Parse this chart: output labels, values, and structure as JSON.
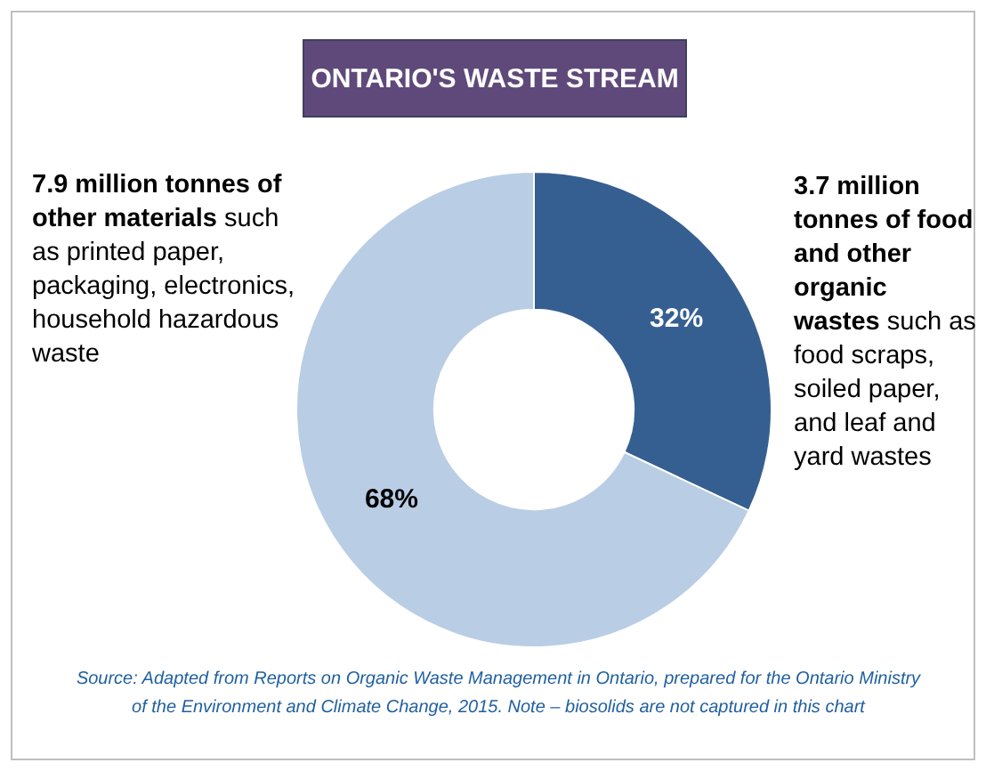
{
  "chart_data": {
    "type": "donut",
    "title": "ONTARIO'S WASTE STREAM",
    "categories": [
      null,
      null
    ],
    "values": [
      32,
      68
    ],
    "colors": [
      "#365f91",
      "#b9cde5"
    ],
    "value_labels": [
      "32%",
      "68%"
    ],
    "legend": false,
    "annotations": [
      "7.9 million tonnes of other materials",
      "such as printed paper, packaging, electronics, household hazardous waste",
      "3.7 million tonnes of food and other organic wastes",
      "such as food scraps, soiled paper, and leaf and yard wastes",
      "Source: Adapted from Reports on Organic Waste Management in Ontario, prepared for the Ontario Ministry of the Environment and Climate Change, 2015. Note – biosolids are not captured in this chart"
    ]
  }
}
